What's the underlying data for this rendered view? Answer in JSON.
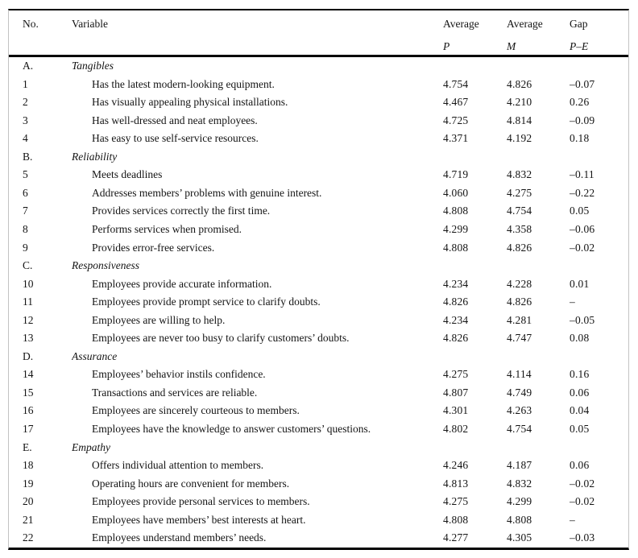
{
  "table": {
    "columns": {
      "no": "No.",
      "variable": "Variable",
      "avg_p_line1": "Average",
      "avg_p_line2": "P",
      "avg_m_line1": "Average",
      "avg_m_line2": "M",
      "gap_line1": "Gap",
      "gap_line2": "P–E"
    },
    "sections": [
      {
        "letter": "A.",
        "name": "Tangibles",
        "items": [
          {
            "no": "1",
            "variable": "Has the latest modern-looking equipment.",
            "avg_p": "4.754",
            "avg_m": "4.826",
            "gap": "–0.07"
          },
          {
            "no": "2",
            "variable": "Has visually appealing physical installations.",
            "avg_p": "4.467",
            "avg_m": "4.210",
            "gap": "0.26"
          },
          {
            "no": "3",
            "variable": "Has well-dressed and neat employees.",
            "avg_p": "4.725",
            "avg_m": "4.814",
            "gap": "–0.09"
          },
          {
            "no": "4",
            "variable": "Has easy to use self-service resources.",
            "avg_p": "4.371",
            "avg_m": "4.192",
            "gap": "0.18"
          }
        ]
      },
      {
        "letter": "B.",
        "name": "Reliability",
        "items": [
          {
            "no": "5",
            "variable": "Meets deadlines",
            "avg_p": "4.719",
            "avg_m": "4.832",
            "gap": "–0.11"
          },
          {
            "no": "6",
            "variable": "Addresses members’ problems with genuine interest.",
            "avg_p": "4.060",
            "avg_m": "4.275",
            "gap": "–0.22"
          },
          {
            "no": "7",
            "variable": "Provides services correctly the first time.",
            "avg_p": "4.808",
            "avg_m": "4.754",
            "gap": "0.05"
          },
          {
            "no": "8",
            "variable": "Performs services when promised.",
            "avg_p": "4.299",
            "avg_m": "4.358",
            "gap": "–0.06"
          },
          {
            "no": "9",
            "variable": "Provides error-free services.",
            "avg_p": "4.808",
            "avg_m": "4.826",
            "gap": "–0.02"
          }
        ]
      },
      {
        "letter": "C.",
        "name": "Responsiveness",
        "items": [
          {
            "no": "10",
            "variable": "Employees provide accurate information.",
            "avg_p": "4.234",
            "avg_m": "4.228",
            "gap": "0.01"
          },
          {
            "no": "11",
            "variable": "Employees provide prompt service to clarify doubts.",
            "avg_p": "4.826",
            "avg_m": "4.826",
            "gap": "–"
          },
          {
            "no": "12",
            "variable": "Employees are willing to help.",
            "avg_p": "4.234",
            "avg_m": "4.281",
            "gap": "–0.05"
          },
          {
            "no": "13",
            "variable": "Employees are never too busy to clarify customers’ doubts.",
            "avg_p": "4.826",
            "avg_m": "4.747",
            "gap": "0.08"
          }
        ]
      },
      {
        "letter": "D.",
        "name": "Assurance",
        "items": [
          {
            "no": "14",
            "variable": "Employees’ behavior instils confidence.",
            "avg_p": "4.275",
            "avg_m": "4.114",
            "gap": "0.16"
          },
          {
            "no": "15",
            "variable": "Transactions and services are reliable.",
            "avg_p": "4.807",
            "avg_m": "4.749",
            "gap": "0.06"
          },
          {
            "no": "16",
            "variable": "Employees are sincerely courteous to members.",
            "avg_p": "4.301",
            "avg_m": "4.263",
            "gap": "0.04"
          },
          {
            "no": "17",
            "variable": "Employees have the knowledge to answer customers’ questions.",
            "avg_p": "4.802",
            "avg_m": "4.754",
            "gap": "0.05"
          }
        ]
      },
      {
        "letter": "E.",
        "name": "Empathy",
        "items": [
          {
            "no": "18",
            "variable": "Offers individual attention to members.",
            "avg_p": "4.246",
            "avg_m": "4.187",
            "gap": "0.06"
          },
          {
            "no": "19",
            "variable": "Operating hours are convenient for members.",
            "avg_p": "4.813",
            "avg_m": "4.832",
            "gap": "–0.02"
          },
          {
            "no": "20",
            "variable": "Employees provide personal services to members.",
            "avg_p": "4.275",
            "avg_m": "4.299",
            "gap": "–0.02"
          },
          {
            "no": "21",
            "variable": "Employees have members’ best interests at heart.",
            "avg_p": "4.808",
            "avg_m": "4.808",
            "gap": "–"
          },
          {
            "no": "22",
            "variable": "Employees understand members’ needs.",
            "avg_p": "4.277",
            "avg_m": "4.305",
            "gap": "–0.03"
          }
        ]
      }
    ]
  },
  "colors": {
    "text": "#141414",
    "rule": "#000000",
    "frame_border": "#c3c3c3",
    "background": "#ffffff"
  }
}
